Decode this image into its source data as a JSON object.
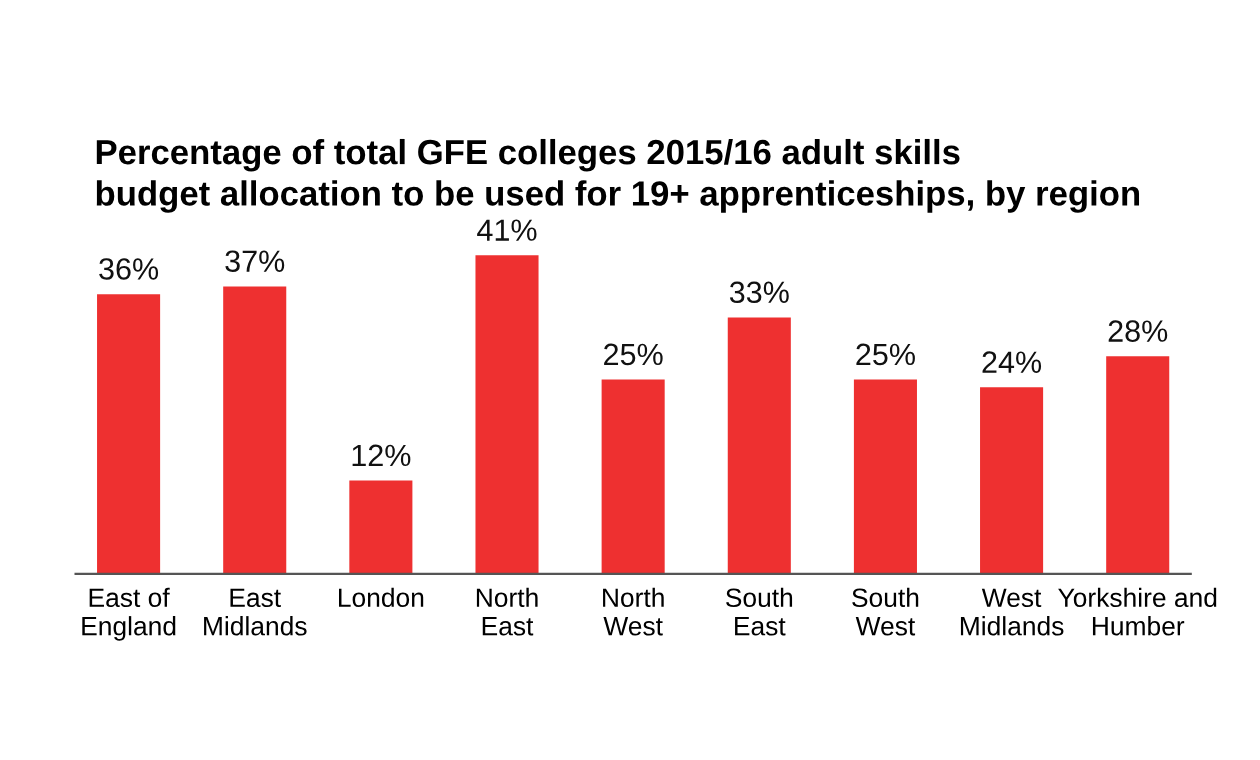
{
  "chart_data": {
    "type": "bar",
    "title": "Percentage of total GFE colleges 2015/16 adult skills\nbudget allocation to be used for 19+ apprenticeships, by region",
    "categories": [
      "East of\nEngland",
      "East\nMidlands",
      "London",
      "North\nEast",
      "North\nWest",
      "South\nEast",
      "South\nWest",
      "West\nMidlands",
      "Yorkshire and\nHumber"
    ],
    "values": [
      36,
      37,
      12,
      41,
      25,
      33,
      25,
      24,
      28
    ],
    "value_labels": [
      "36%",
      "37%",
      "12%",
      "41%",
      "25%",
      "33%",
      "25%",
      "24%",
      "28%"
    ],
    "color": "#ee3030"
  }
}
